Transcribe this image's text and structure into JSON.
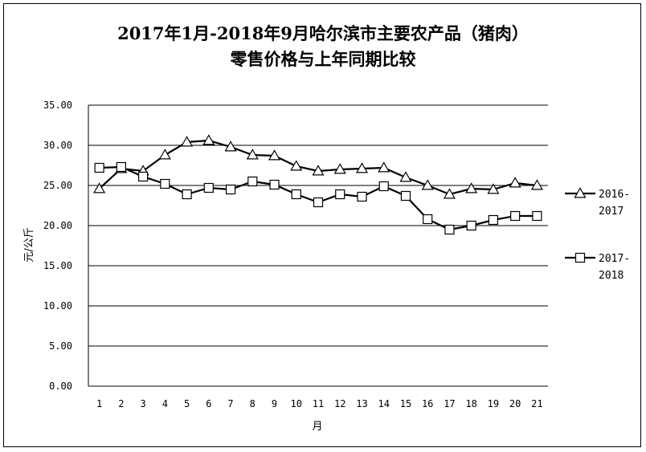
{
  "chart_data": {
    "type": "line",
    "title_line1": "2017年1月-2018年9月哈尔滨市主要农产品（猪肉）",
    "title_line2": "零售价格与上年同期比较",
    "xlabel": "月",
    "ylabel": "元/公斤",
    "categories": [
      "1",
      "2",
      "3",
      "4",
      "5",
      "6",
      "7",
      "8",
      "9",
      "10",
      "11",
      "12",
      "13",
      "14",
      "15",
      "16",
      "17",
      "18",
      "19",
      "20",
      "21"
    ],
    "ylim": [
      0,
      35
    ],
    "yticks": [
      "0.00",
      "5.00",
      "10.00",
      "15.00",
      "20.00",
      "25.00",
      "30.00",
      "35.00"
    ],
    "grid": true,
    "legend_position": "right",
    "series": [
      {
        "name_line1": "2016-",
        "name_line2": "2017",
        "marker": "triangle",
        "values": [
          24.6,
          27.1,
          26.8,
          28.8,
          30.4,
          30.6,
          29.8,
          28.8,
          28.7,
          27.4,
          26.8,
          27.0,
          27.1,
          27.2,
          26.0,
          25.0,
          23.9,
          24.6,
          24.5,
          25.3,
          25.0
        ]
      },
      {
        "name_line1": "2017-",
        "name_line2": "2018",
        "marker": "square",
        "values": [
          27.2,
          27.3,
          26.1,
          25.2,
          23.9,
          24.7,
          24.5,
          25.5,
          25.1,
          23.9,
          22.9,
          23.9,
          23.6,
          24.9,
          23.7,
          20.8,
          19.5,
          20.0,
          20.7,
          21.2,
          21.2
        ]
      }
    ]
  }
}
